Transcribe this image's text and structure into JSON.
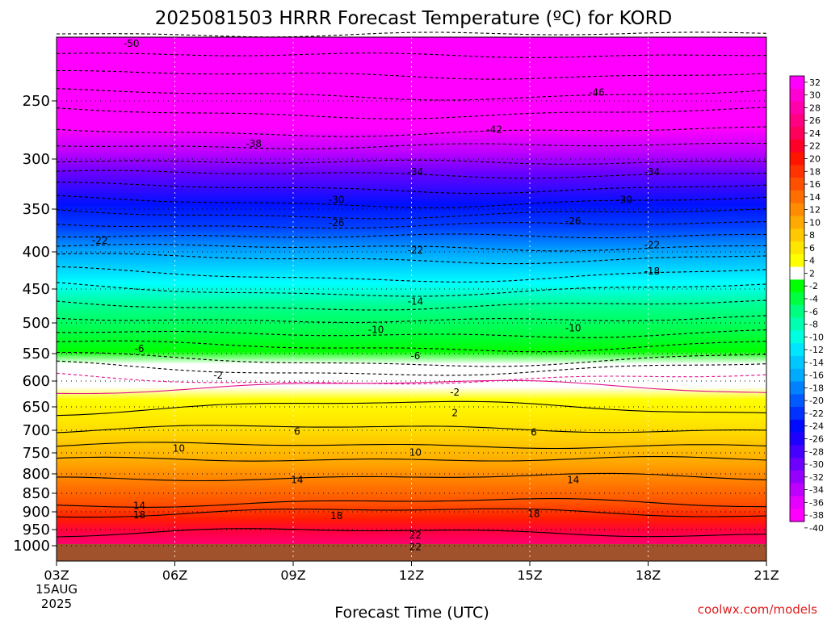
{
  "chart_data": {
    "type": "heatmap",
    "title": "2025081503 HRRR Forecast Temperature (ºC) for KORD",
    "xlabel": "Forecast Time (UTC)",
    "ylabel": "",
    "credit": "coolwx.com/models",
    "x_ticks": [
      "03Z",
      "06Z",
      "09Z",
      "12Z",
      "15Z",
      "18Z",
      "21Z"
    ],
    "x_date_lines": [
      "15AUG",
      "2025"
    ],
    "x_hours": [
      3,
      6,
      9,
      12,
      15,
      18,
      21
    ],
    "y_ticks": [
      250,
      300,
      350,
      400,
      450,
      500,
      550,
      600,
      650,
      700,
      750,
      800,
      850,
      900,
      950,
      1000
    ],
    "colorbar": {
      "ticks": [
        "32",
        "30",
        "28",
        "26",
        "24",
        "22",
        "20",
        "18",
        "16",
        "14",
        "12",
        "10",
        "8",
        "6",
        "4",
        "2",
        "-2",
        "-4",
        "-6",
        "-8",
        "-10",
        "-12",
        "-14",
        "-16",
        "-18",
        "-20",
        "-22",
        "-24",
        "-26",
        "-28",
        "-30",
        "-32",
        "-34",
        "-36",
        "-38",
        "-40"
      ],
      "colors": [
        "#ff00ff",
        "#ff00d2",
        "#ff00aa",
        "#ff0082",
        "#ff005a",
        "#ff0028",
        "#ff1400",
        "#ff3200",
        "#ff5000",
        "#ff6e00",
        "#ff8c00",
        "#ffaa00",
        "#ffc800",
        "#ffe600",
        "#ffff00",
        "#ffffff",
        "#00ff00",
        "#00ff40",
        "#00ff80",
        "#00ffb0",
        "#00ffe0",
        "#00e6ff",
        "#00c8ff",
        "#00aaff",
        "#0082ff",
        "#005aff",
        "#0032ff",
        "#000aff",
        "#1e00ff",
        "#4600ff",
        "#6e00ff",
        "#9600ff",
        "#be00ff",
        "#e600ff",
        "#ff00ff"
      ]
    },
    "contour_labels": [
      {
        "text": "-50",
        "hour": 4.9,
        "p": 200
      },
      {
        "text": "-46",
        "hour": 16.7,
        "p": 242
      },
      {
        "text": "-42",
        "hour": 14.1,
        "p": 274
      },
      {
        "text": "-38",
        "hour": 8.0,
        "p": 286
      },
      {
        "text": "-34",
        "hour": 12.1,
        "p": 312
      },
      {
        "text": "-34",
        "hour": 18.1,
        "p": 312
      },
      {
        "text": "-30",
        "hour": 10.1,
        "p": 340
      },
      {
        "text": "-30",
        "hour": 17.4,
        "p": 340
      },
      {
        "text": "-26",
        "hour": 10.1,
        "p": 365
      },
      {
        "text": "-26",
        "hour": 16.1,
        "p": 363
      },
      {
        "text": "-22",
        "hour": 4.1,
        "p": 386
      },
      {
        "text": "-22",
        "hour": 12.1,
        "p": 397
      },
      {
        "text": "-22",
        "hour": 18.1,
        "p": 391
      },
      {
        "text": "-18",
        "hour": 18.1,
        "p": 425
      },
      {
        "text": "-14",
        "hour": 12.1,
        "p": 467
      },
      {
        "text": "-10",
        "hour": 11.1,
        "p": 510
      },
      {
        "text": "-10",
        "hour": 16.1,
        "p": 507
      },
      {
        "text": "-6",
        "hour": 5.1,
        "p": 541
      },
      {
        "text": "-6",
        "hour": 12.1,
        "p": 553
      },
      {
        "text": "-2",
        "hour": 7.1,
        "p": 588
      },
      {
        "text": "-2",
        "hour": 13.1,
        "p": 620
      },
      {
        "text": "2",
        "hour": 13.1,
        "p": 661
      },
      {
        "text": "6",
        "hour": 9.1,
        "p": 701
      },
      {
        "text": "6",
        "hour": 15.1,
        "p": 703
      },
      {
        "text": "10",
        "hour": 6.1,
        "p": 738
      },
      {
        "text": "10",
        "hour": 12.1,
        "p": 747
      },
      {
        "text": "14",
        "hour": 9.1,
        "p": 814
      },
      {
        "text": "14",
        "hour": 16.1,
        "p": 814
      },
      {
        "text": "14",
        "hour": 5.1,
        "p": 881
      },
      {
        "text": "18",
        "hour": 5.1,
        "p": 907
      },
      {
        "text": "18",
        "hour": 10.1,
        "p": 909
      },
      {
        "text": "18",
        "hour": 15.1,
        "p": 903
      },
      {
        "text": "22",
        "hour": 12.1,
        "p": 965
      },
      {
        "text": "22",
        "hour": 12.1,
        "p": 1001
      }
    ]
  }
}
